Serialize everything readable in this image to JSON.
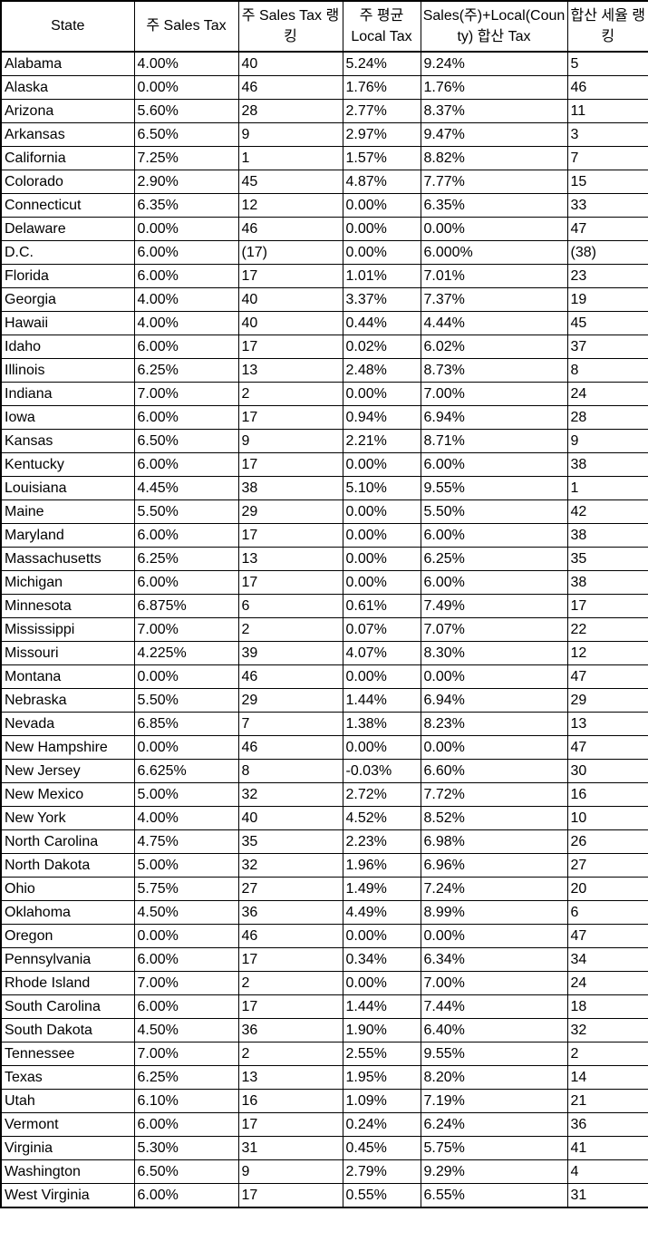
{
  "table": {
    "columns": [
      "State",
      "주 Sales Tax",
      "주 Sales Tax 랭킹",
      "주 평균 Local Tax",
      "Sales(주)+Local(County) 합산 Tax",
      "합산 세율 랭킹"
    ],
    "rows": [
      [
        "Alabama",
        "4.00%",
        "40",
        "5.24%",
        "9.24%",
        "5"
      ],
      [
        "Alaska",
        "0.00%",
        "46",
        "1.76%",
        "1.76%",
        "46"
      ],
      [
        "Arizona",
        "5.60%",
        "28",
        "2.77%",
        "8.37%",
        "11"
      ],
      [
        "Arkansas",
        "6.50%",
        "9",
        "2.97%",
        "9.47%",
        "3"
      ],
      [
        "California",
        "7.25%",
        "1",
        "1.57%",
        "8.82%",
        "7"
      ],
      [
        "Colorado",
        "2.90%",
        "45",
        "4.87%",
        "7.77%",
        "15"
      ],
      [
        "Connecticut",
        "6.35%",
        "12",
        "0.00%",
        "6.35%",
        "33"
      ],
      [
        "Delaware",
        "0.00%",
        "46",
        "0.00%",
        "0.00%",
        "47"
      ],
      [
        "D.C.",
        "6.00%",
        "(17)",
        "0.00%",
        "6.000%",
        "(38)"
      ],
      [
        "Florida",
        "6.00%",
        "17",
        "1.01%",
        "7.01%",
        "23"
      ],
      [
        "Georgia",
        "4.00%",
        "40",
        "3.37%",
        "7.37%",
        "19"
      ],
      [
        "Hawaii",
        "4.00%",
        "40",
        "0.44%",
        "4.44%",
        "45"
      ],
      [
        "Idaho",
        "6.00%",
        "17",
        "0.02%",
        "6.02%",
        "37"
      ],
      [
        "Illinois",
        "6.25%",
        "13",
        "2.48%",
        "8.73%",
        "8"
      ],
      [
        "Indiana",
        "7.00%",
        "2",
        "0.00%",
        "7.00%",
        "24"
      ],
      [
        "Iowa",
        "6.00%",
        "17",
        "0.94%",
        "6.94%",
        "28"
      ],
      [
        "Kansas",
        "6.50%",
        "9",
        "2.21%",
        "8.71%",
        "9"
      ],
      [
        "Kentucky",
        "6.00%",
        "17",
        "0.00%",
        "6.00%",
        "38"
      ],
      [
        "Louisiana",
        "4.45%",
        "38",
        "5.10%",
        "9.55%",
        "1"
      ],
      [
        "Maine",
        "5.50%",
        "29",
        "0.00%",
        "5.50%",
        "42"
      ],
      [
        "Maryland",
        "6.00%",
        "17",
        "0.00%",
        "6.00%",
        "38"
      ],
      [
        "Massachusetts",
        "6.25%",
        "13",
        "0.00%",
        "6.25%",
        "35"
      ],
      [
        "Michigan",
        "6.00%",
        "17",
        "0.00%",
        "6.00%",
        "38"
      ],
      [
        "Minnesota",
        "6.875%",
        "6",
        "0.61%",
        "7.49%",
        "17"
      ],
      [
        "Mississippi",
        "7.00%",
        "2",
        "0.07%",
        "7.07%",
        "22"
      ],
      [
        "Missouri",
        "4.225%",
        "39",
        "4.07%",
        "8.30%",
        "12"
      ],
      [
        "Montana",
        "0.00%",
        "46",
        "0.00%",
        "0.00%",
        "47"
      ],
      [
        "Nebraska",
        "5.50%",
        "29",
        "1.44%",
        "6.94%",
        "29"
      ],
      [
        "Nevada",
        "6.85%",
        "7",
        "1.38%",
        "8.23%",
        "13"
      ],
      [
        "New Hampshire",
        "0.00%",
        "46",
        "0.00%",
        "0.00%",
        "47"
      ],
      [
        "New Jersey",
        "6.625%",
        "8",
        "-0.03%",
        "6.60%",
        "30"
      ],
      [
        "New Mexico",
        "5.00%",
        "32",
        "2.72%",
        "7.72%",
        "16"
      ],
      [
        "New York",
        "4.00%",
        "40",
        "4.52%",
        "8.52%",
        "10"
      ],
      [
        "North Carolina",
        "4.75%",
        "35",
        "2.23%",
        "6.98%",
        "26"
      ],
      [
        "North Dakota",
        "5.00%",
        "32",
        "1.96%",
        "6.96%",
        "27"
      ],
      [
        "Ohio",
        "5.75%",
        "27",
        "1.49%",
        "7.24%",
        "20"
      ],
      [
        "Oklahoma",
        "4.50%",
        "36",
        "4.49%",
        "8.99%",
        "6"
      ],
      [
        "Oregon",
        "0.00%",
        "46",
        "0.00%",
        "0.00%",
        "47"
      ],
      [
        "Pennsylvania",
        "6.00%",
        "17",
        "0.34%",
        "6.34%",
        "34"
      ],
      [
        "Rhode Island",
        "7.00%",
        "2",
        "0.00%",
        "7.00%",
        "24"
      ],
      [
        "South Carolina",
        "6.00%",
        "17",
        "1.44%",
        "7.44%",
        "18"
      ],
      [
        "South Dakota",
        "4.50%",
        "36",
        "1.90%",
        "6.40%",
        "32"
      ],
      [
        "Tennessee",
        "7.00%",
        "2",
        "2.55%",
        "9.55%",
        "2"
      ],
      [
        "Texas",
        "6.25%",
        "13",
        "1.95%",
        "8.20%",
        "14"
      ],
      [
        "Utah",
        "6.10%",
        "16",
        "1.09%",
        "7.19%",
        "21"
      ],
      [
        "Vermont",
        "6.00%",
        "17",
        "0.24%",
        "6.24%",
        "36"
      ],
      [
        "Virginia",
        "5.30%",
        "31",
        "0.45%",
        "5.75%",
        "41"
      ],
      [
        "Washington",
        "6.50%",
        "9",
        "2.79%",
        "9.29%",
        "4"
      ],
      [
        "West Virginia",
        "6.00%",
        "17",
        "0.55%",
        "6.55%",
        "31"
      ]
    ]
  },
  "colors": {
    "border": "#000000",
    "text": "#000000",
    "background": "#ffffff"
  }
}
